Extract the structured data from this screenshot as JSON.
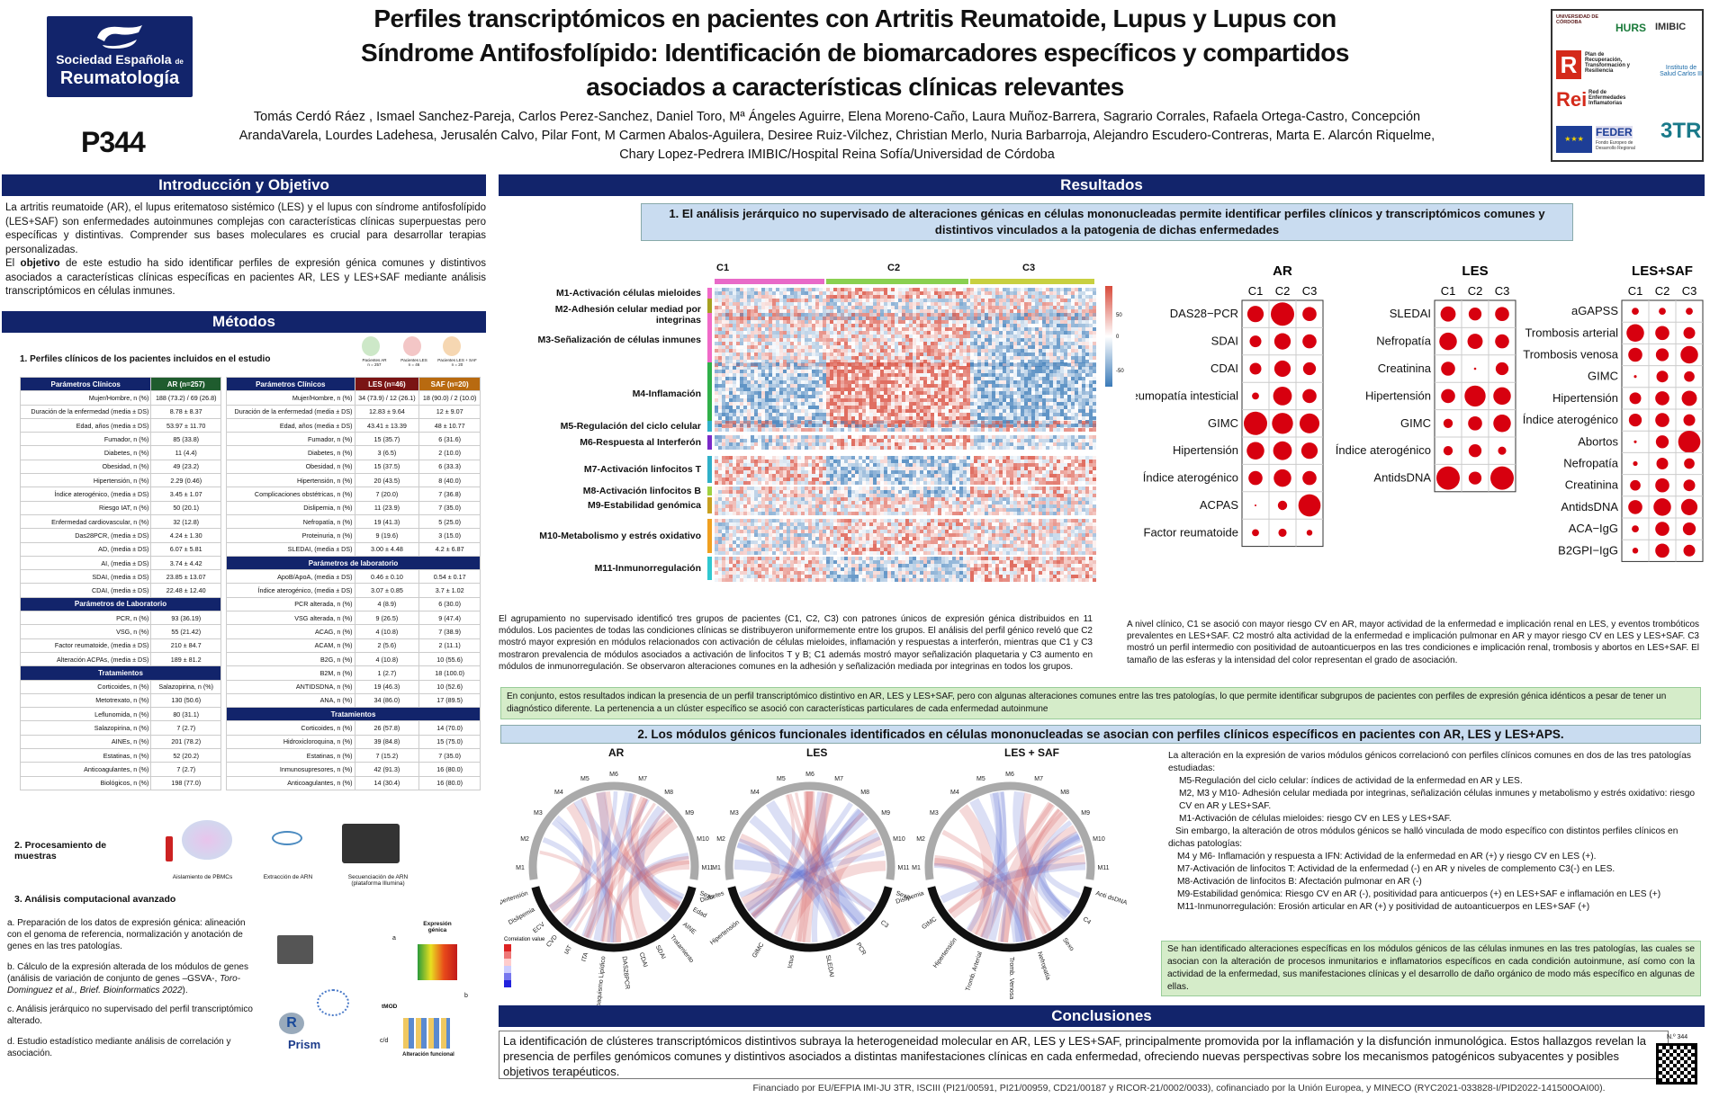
{
  "header": {
    "logo_line1": "Sociedad Española",
    "logo_de": "de",
    "logo_line2": "Reumatología",
    "title": [
      "Perfiles transcriptómicos en pacientes con Artritis Reumatoide, Lupus y Lupus con",
      "Síndrome Antifosfolípido: Identificación de biomarcadores específicos y compartidos",
      "asociados a características clínicas relevantes"
    ],
    "authors": [
      "Tomás Cerdó Ráez , Ismael Sanchez-Pareja, Carlos Perez-Sanchez, Daniel Toro, Mª Ángeles Aguirre, Elena Moreno-Caño, Laura Muñoz-Barrera, Sagrario Corrales, Rafaela Ortega-Castro, Concepción",
      "ArandaVarela, Lourdes Ladehesa, Jerusalén Calvo, Pilar Font, M Carmen Abalos-Aguilera, Desiree Ruiz-Vilchez, Christian Merlo, Nuria Barbarroja, Alejandro Escudero-Contreras, Marta E. Alarcón Riquelme,",
      "Chary Lopez-Pedrera IMIBIC/Hospital Reina Sofía/Universidad de Córdoba"
    ],
    "poster_id": "P344",
    "sponsors": {
      "uco": "UNIVERSIDAD DE CÓRDOBA",
      "hurs": "HURS",
      "imibic": "IMIBIC",
      "plan": "Plan de Recuperación, Transformación y Resiliencia",
      "isciii": "Instituto de Salud Carlos III",
      "rei": "Red de Enfermedades Inflamatorias",
      "feder": "FEDER",
      "feder_sub": "Fondo Europeo de Desarrollo Regional",
      "threetr": "3TR"
    }
  },
  "intro": {
    "heading": "Introducción y Objetivo",
    "p1": "La artritis reumatoide (AR), el lupus eritematoso sistémico (LES) y el lupus con síndrome antifosfolípido (LES+SAF) son enfermedades autoinmunes complejas con características clínicas superpuestas pero específicas y distintivas. Comprender sus bases moleculares es crucial para desarrollar terapias personalizadas.",
    "p2_pre": "El ",
    "p2_bold": "objetivo",
    "p2_post": " de este estudio ha sido identificar perfiles de expresión génica comunes y distintivos asociados a características clínicas específicas en pacientes AR, LES y LES+SAF mediante análisis transcriptómicos  en células inmunes."
  },
  "methods": {
    "heading": "Métodos",
    "s1": "1. Perfiles clínicos de los pacientes incluidos en el estudio",
    "icons": {
      "ar": "Pacientes AR",
      "les": "Pacientes LES",
      "saf": "Pacientes LES + SAF",
      "ar_n": "n = 257",
      "les_n": "n = 46",
      "saf_n": "n = 20"
    },
    "t1_head": [
      "Parámetros Clínicos",
      "AR (n=257)"
    ],
    "t1_rows": [
      [
        "Mujer/Hombre, n (%)",
        "188 (73.2) / 69 (26.8)"
      ],
      [
        "Duración de la enfermedad (media ± DS)",
        "8.78 ± 8.37"
      ],
      [
        "Edad, años (media ± DS)",
        "53.97 ± 11.70"
      ],
      [
        "Fumador, n (%)",
        "85 (33.8)"
      ],
      [
        "Diabetes, n (%)",
        "11 (4.4)"
      ],
      [
        "Obesidad, n (%)",
        "49 (23.2)"
      ],
      [
        "Hipertensión, n (%)",
        "2.29 (0.46)"
      ],
      [
        "Índice aterogénico, (media ± DS)",
        "3.45 ± 1.07"
      ],
      [
        "Riesgo IAT, n (%)",
        "50 (20.1)"
      ],
      [
        "Enfermedad cardiovascular, n (%)",
        "32 (12.8)"
      ],
      [
        "Das28PCR, (media ± DS)",
        "4.24 ± 1.30"
      ],
      [
        "AD, (media ± DS)",
        "6.07 ± 5.81"
      ],
      [
        "AI, (media ± DS)",
        "3.74 ± 4.42"
      ],
      [
        "SDAI, (media ± DS)",
        "23.85 ± 13.07"
      ],
      [
        "CDAI, (media ± DS)",
        "22.48 ± 12.40"
      ]
    ],
    "t1_lab_head": "Parámetros de Laboratorio",
    "t1_lab": [
      [
        "PCR, n (%)",
        "93 (36.19)"
      ],
      [
        "VSG, n (%)",
        "55 (21.42)"
      ],
      [
        "Factor reumatoide, (media ± DS)",
        "210 ± 84.7"
      ],
      [
        "Alteración ACPAs, (media ± DS)",
        "189 ± 81.2"
      ]
    ],
    "t1_tr_head": "Tratamientos",
    "t1_tr": [
      [
        "Corticoides, n (%)",
        "Salazopirina, n (%)"
      ],
      [
        "Metotrexato, n (%)",
        "130 (50.6)"
      ],
      [
        "Leflunomida, n (%)",
        "80 (31.1)"
      ],
      [
        "Salazopirina, n (%)",
        "7 (2.7)"
      ],
      [
        "AINEs, n (%)",
        "201 (78.2)"
      ],
      [
        "Estatinas, n (%)",
        "52 (20.2)"
      ],
      [
        "Anticoagulantes, n (%)",
        "7 (2.7)"
      ],
      [
        "Biológicos, n (%)",
        "198 (77.0)"
      ]
    ],
    "t2_head": [
      "Parámetros Clínicos",
      "LES (n=46)",
      "SAF (n=20)"
    ],
    "t2_rows": [
      [
        "Mujer/Hombre, n (%)",
        "34 (73.9) / 12 (26.1)",
        "18 (90.0) / 2 (10.0)"
      ],
      [
        "Duración de la enfermedad (media ± DS)",
        "12.83 ± 9.64",
        "12 ± 9.07"
      ],
      [
        "Edad, años (media ± DS)",
        "43.41 ± 13.39",
        "48 ± 10.77"
      ],
      [
        "Fumador, n (%)",
        "15 (35.7)",
        "6 (31.6)"
      ],
      [
        "Diabetes, n (%)",
        "3 (6.5)",
        "2 (10.0)"
      ],
      [
        "Obesidad, n (%)",
        "15 (37.5)",
        "6 (33.3)"
      ],
      [
        "Hipertensión, n (%)",
        "20 (43.5)",
        "8 (40.0)"
      ],
      [
        "Complicaciones obstétricas, n (%)",
        "7 (20.0)",
        "7 (36.8)"
      ],
      [
        "Dislipemia, n (%)",
        "11 (23.9)",
        "7 (35.0)"
      ],
      [
        "Nefropatía, n (%)",
        "19 (41.3)",
        "5 (25.0)"
      ],
      [
        "Proteinuria, n (%)",
        "9 (19.6)",
        "3 (15.0)"
      ],
      [
        "SLEDAI, (media ± DS)",
        "3.00 ± 4.48",
        "4.2 ± 6.87"
      ]
    ],
    "t2_lab_head": "Parámetros de laboratorio",
    "t2_lab": [
      [
        "ApoB/ApoA, (media ± DS)",
        "0.46 ± 0.10",
        "0.54 ± 0.17"
      ],
      [
        "Índice aterogénico, (media ± DS)",
        "3.07 ± 0.85",
        "3.7 ± 1.02"
      ],
      [
        "PCR alterada, n (%)",
        "4 (8.9)",
        "6 (30.0)"
      ],
      [
        "VSG alterada, n (%)",
        "9 (26.5)",
        "9 (47.4)"
      ],
      [
        "ACAG, n (%)",
        "4 (10.8)",
        "7 (38.9)"
      ],
      [
        "ACAM, n (%)",
        "2 (5.6)",
        "2 (11.1)"
      ],
      [
        "B2G, n (%)",
        "4 (10.8)",
        "10 (55.6)"
      ],
      [
        "B2M, n (%)",
        "1 (2.7)",
        "18 (100.0)"
      ],
      [
        "ANTIDSDNA, n (%)",
        "19 (46.3)",
        "10 (52.6)"
      ],
      [
        "ANA, n (%)",
        "34 (86.0)",
        "17 (89.5)"
      ]
    ],
    "t2_tr_head": "Tratamientos",
    "t2_tr": [
      [
        "Corticoides, n (%)",
        "26 (57.8)",
        "14 (70.0)"
      ],
      [
        "Hidroxicloroquina, n (%)",
        "39 (84.8)",
        "15 (75.0)"
      ],
      [
        "Estatinas, n (%)",
        "7 (15.2)",
        "7 (35.0)"
      ],
      [
        "Inmunosupresores, n (%)",
        "42 (91.3)",
        "16 (80.0)"
      ],
      [
        "Anticoagulantes, n (%)",
        "14 (30.4)",
        "16 (80.0)"
      ]
    ],
    "s2": "2. Procesamiento de muestras",
    "s2_steps": [
      "Aislamiento de PBMCs",
      "Extracción de ARN",
      "Secuenciación de ARN (plataforma Illumina)"
    ],
    "s3": "3. Análisis computacional avanzado",
    "s3_a": "a.  Preparación de los datos de expresión génica: alineación  con  el genoma de referencia, normalización y anotación de genes en las tres patologías.",
    "s3_b_pre": "b.  Cálculo de la expresión alterada de los módulos de genes  (análisis de variación de conjunto de genes –GSVA-, ",
    "s3_b_it": "Toro- Dominguez et al., Brief. Bioinformatics 2022",
    "s3_b_post": ").",
    "s3_c": "c.  Análisis  jerárquico  no  supervisado  del  perfil transcriptómico alterado.",
    "s3_d": "d.  Estudio estadístico mediante análisis de correlación y asociación.",
    "wf": {
      "expr": "Expresión génica",
      "tmod": "tMOD",
      "alt": "Alteración funcional",
      "a": "a",
      "b": "b",
      "cd": "c/d",
      "r": "R",
      "prism": "Prism"
    }
  },
  "results": {
    "heading": "Resultados",
    "r1_title": "1. El análisis jerárquico no supervisado de alteraciones génicas en células mononucleadas permite identificar perfiles clínicos y transcriptómicos comunes y distintivos vinculados a la patogenia de dichas enfermedades",
    "clusters": [
      "C1",
      "C2",
      "C3"
    ],
    "legend_ticks": [
      "50",
      "0",
      "-50"
    ],
    "modules": [
      "M1-Activación células mieloides",
      "M2-Adhesión celular mediad por integrinas",
      "M3-Señalización de células inmunes",
      "M4-Inflamación",
      "M5-Regulación del ciclo celular",
      "M6-Respuesta al Interferón",
      "M7-Activación linfocitos T",
      "M8-Activación linfocitos B",
      "M9-Estabilidad genómica",
      "M10-Metabolismo y estrés oxidativo",
      "M11-Inmunorregulación"
    ],
    "r1_text_left": "El agrupamiento no supervisado identificó tres grupos de pacientes (C1, C2, C3) con patrones únicos de expresión génica distribuidos en 11 módulos. Los pacientes de todas las condiciones clínicas se distribuyeron uniformemente entre los grupos. El análisis del perfil génico reveló que C2 mostró mayor expresión en módulos relacionados con activación de células mieloides, inflamación y respuestas a interferón, mientras que C1 y C3 mostraron prevalencia de módulos asociados a activación de linfocitos T y B; C1 además mostró mayor señalización plaquetaria y C3 aumento en módulos de inmunorregulación. Se observaron alteraciones comunes en la adhesión y señalización mediada por integrinas en todos los grupos.",
    "r1_text_right": "A nivel clínico, C1 se asoció con mayor riesgo CV en AR, mayor actividad de la enfermedad e implicación renal en LES, y eventos trombóticos prevalentes en LES+SAF. C2 mostró alta actividad de la enfermedad e implicación pulmonar en AR y mayor riesgo CV en LES y LES+SAF. C3 mostró un perfil intermedio con positividad de autoanticuerpos en las tres condiciones e implicación renal, trombosis y abortos en LES+SAF. El tamaño de las esferas y la intensidad del color representan el grado de asociación.",
    "r1_green": "En conjunto, estos resultados indican la presencia de un perfil transcriptómico distintivo en AR, LES y LES+SAF, pero con algunas alteraciones comunes entre las tres patologías, lo que permite identificar subgrupos de pacientes con perfiles de expresión génica idénticos a pesar de tener un diagnóstico diferente. La pertenencia a un clúster específico se asoció con características particulares de cada enfermedad autoinmune",
    "r2_title": "2. Los módulos génicos funcionales identificados en células mononucleadas se asocian con perfiles clínicos específicos en pacientes con AR, LES y LES+APS.",
    "r2_intro": "La alteración en la expresión de varios módulos génicos correlacionó con perfiles clínicos comunes en dos de las tres patologías estudiadas:",
    "r2_common": [
      "M5-Regulación del ciclo celular: índices de actividad de la enfermedad en AR y LES.",
      "M2, M3 y M10- Adhesión celular mediada por integrinas, señalización células inmunes y metabolismo y estrés oxidativo: riesgo CV en AR y LES+SAF.",
      "M1-Activación de células mieloides: riesgo CV en LES y LES+SAF."
    ],
    "r2_mid": "Sin embargo, la alteración de otros módulos génicos se halló vinculada de modo específico con distintos perfiles clínicos en dichas patologías:",
    "r2_spec": [
      "M4 y M6- Inflamación y respuesta a IFN: Actividad de la enfermedad en AR (+) y riesgo CV en LES (+).",
      "M7-Activación de linfocitos T: Actividad de la enfermedad (-) en AR y niveles de complemento C3(-) en LES.",
      "M8-Activación de linfocitos B: Afectación pulmonar en AR (-)",
      "M9-Estabilidad genómica: Riesgo CV en AR (-), positividad para anticuerpos (+)  en LES+SAF e inflamación en LES (+)",
      "M11-Inmunorregulación: Erosión articular en AR (+) y positividad de autoanticuerpos en LES+SAF (+)"
    ],
    "r2_green": "Se han identificado alteraciones específicas en los módulos génicos de las células inmunes en las tres patologías, las cuales se asocian con la alteración de procesos inmunitarios e inflamatorios específicos en cada condición autoinmune, así como con la actividad de la enfermedad, sus manifestaciones clínicas y el desarrollo de daño orgánico de modo más específico en algunas de ellas.",
    "chord_titles": [
      "AR",
      "LES",
      "LES + SAF"
    ],
    "chord_legend": "Correlation value",
    "chord_ar_labels": [
      "Hipertensión",
      "Dislipemia",
      "ECV",
      "CVD",
      "IAT",
      "ITA",
      "Tabaquismo Lipídico",
      "DAS28PCR",
      "CDAI",
      "SDAI",
      "Tratamiento",
      "AINE",
      "Edad",
      "Sexo"
    ],
    "chord_les_labels": [
      "Diabetes",
      "Hipertensión",
      "GIMC",
      "Ictus",
      "SLEDAI",
      "PCR",
      "C3",
      "Sexo"
    ],
    "chord_saf_labels": [
      "Dislipemia",
      "GIMC",
      "Hipertensión",
      "Tromb. Arterial",
      "Tromb. Venosa",
      "Nefropatía",
      "Sexo",
      "C4",
      "Anti dsDNA"
    ],
    "mod_labels": [
      "M1",
      "M2",
      "M3",
      "M4",
      "M5",
      "M6",
      "M7",
      "M8",
      "M9",
      "M10",
      "M11"
    ]
  },
  "dots": {
    "ar": {
      "title": "AR",
      "cols": [
        "C1",
        "C2",
        "C3"
      ],
      "rows": [
        "DAS28−PCR",
        "SDAI",
        "CDAI",
        "Neumopatía intesticial",
        "GIMC",
        "Hipertensión",
        "Índice aterogénico",
        "ACPAS",
        "Factor reumatoide"
      ],
      "sizes": [
        [
          0.7,
          1.0,
          0.6
        ],
        [
          0.5,
          0.7,
          0.6
        ],
        [
          0.5,
          0.7,
          0.55
        ],
        [
          0.3,
          0.8,
          0.6
        ],
        [
          1.0,
          0.9,
          0.85
        ],
        [
          0.75,
          0.8,
          0.7
        ],
        [
          0.6,
          0.75,
          0.6
        ],
        [
          0.08,
          0.4,
          0.95
        ],
        [
          0.3,
          0.35,
          0.25
        ]
      ]
    },
    "les": {
      "title": "LES",
      "cols": [
        "C1",
        "C2",
        "C3"
      ],
      "rows": [
        "SLEDAI",
        "Nefropatía",
        "Creatinina",
        "Hipertensión",
        "GIMC",
        "Índice aterogénico",
        "AntidsDNA"
      ],
      "sizes": [
        [
          0.65,
          0.55,
          0.6
        ],
        [
          0.75,
          0.65,
          0.6
        ],
        [
          0.6,
          0.1,
          0.55
        ],
        [
          0.6,
          0.9,
          0.75
        ],
        [
          0.4,
          0.6,
          0.75
        ],
        [
          0.4,
          0.55,
          0.35
        ],
        [
          1.0,
          0.55,
          1.0
        ]
      ]
    },
    "saf": {
      "title": "LES+SAF",
      "cols": [
        "C1",
        "C2",
        "C3"
      ],
      "rows": [
        "aGAPSS",
        "Trombosis arterial",
        "Trombosis venosa",
        "GIMC",
        "Hipertensión",
        "Índice aterogénico",
        "Abortos",
        "Nefropatía",
        "Creatinina",
        "AntidsDNA",
        "ACA−IgG",
        "B2GPI−IgG"
      ],
      "sizes": [
        [
          0.3,
          0.3,
          0.3
        ],
        [
          0.75,
          0.6,
          0.5
        ],
        [
          0.6,
          0.55,
          0.75
        ],
        [
          0.12,
          0.5,
          0.45
        ],
        [
          0.5,
          0.6,
          0.65
        ],
        [
          0.55,
          0.6,
          0.5
        ],
        [
          0.12,
          0.55,
          0.95
        ],
        [
          0.2,
          0.5,
          0.45
        ],
        [
          0.45,
          0.6,
          0.5
        ],
        [
          0.6,
          0.75,
          0.7
        ],
        [
          0.3,
          0.6,
          0.55
        ],
        [
          0.25,
          0.6,
          0.5
        ]
      ]
    }
  },
  "conclusions": {
    "heading": "Conclusiones",
    "text": "La identificación de clústeres transcriptómicos distintivos subraya la heterogeneidad molecular en AR, LES y LES+SAF, principalmente promovida por la inflamación y la disfunción inmunológica. Estos hallazgos revelan la presencia de perfiles genómicos comunes y distintivos asociados a distintas manifestaciones clínicas en cada enfermedad, ofreciendo nuevas perspectivas sobre los mecanismos patogénicos subyacentes y posibles objetivos terapéuticos.",
    "qr_label": "N.º 344"
  },
  "footer": "Financiado por EU/EFPIA IMI-JU 3TR, ISCIII (PI21/00591, PI21/00959, CD21/00187 y RICOR-21/0002/0033), cofinanciado por la Unión Europea, y MINECO (RYC2021-033828-I/PID2022-141500OAI00).",
  "colors": {
    "navy": "#12246b",
    "light_blue": "#c9dcf0",
    "green": "#d5ecc9",
    "dot_red": "#d7000f"
  }
}
